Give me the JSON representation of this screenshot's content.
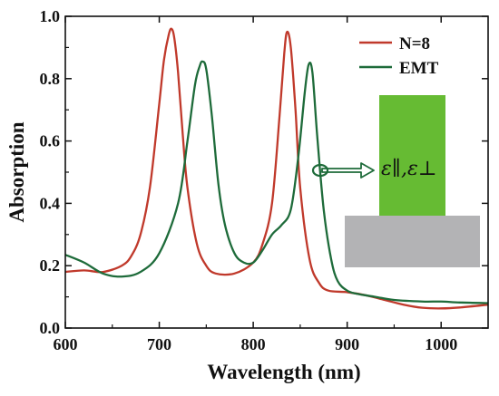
{
  "chart_data": {
    "type": "line",
    "title": "",
    "xlabel": "Wavelength (nm)",
    "ylabel": "Absorption",
    "xlim": [
      600,
      1050
    ],
    "ylim": [
      0.0,
      1.0
    ],
    "xticks": [
      600,
      700,
      800,
      900,
      1000
    ],
    "yticks": [
      0.0,
      0.2,
      0.4,
      0.6,
      0.8,
      1.0
    ],
    "xtick_labels": [
      "600",
      "700",
      "800",
      "900",
      "1000"
    ],
    "ytick_labels": [
      "0.0",
      "0.2",
      "0.4",
      "0.6",
      "0.8",
      "1.0"
    ],
    "grid": false,
    "legend_position": "top-right",
    "series": [
      {
        "name": "N=8",
        "color": "#c0392b",
        "x": [
          600,
          620,
          640,
          660,
          670,
          680,
          690,
          700,
          705,
          710,
          713,
          716,
          720,
          725,
          730,
          740,
          750,
          760,
          780,
          800,
          810,
          820,
          828,
          833,
          836,
          840,
          845,
          850,
          860,
          870,
          880,
          900,
          920,
          940,
          960,
          980,
          1000,
          1020,
          1050
        ],
        "y": [
          0.18,
          0.185,
          0.18,
          0.2,
          0.23,
          0.3,
          0.45,
          0.72,
          0.86,
          0.94,
          0.96,
          0.93,
          0.82,
          0.62,
          0.45,
          0.27,
          0.2,
          0.175,
          0.175,
          0.21,
          0.27,
          0.4,
          0.68,
          0.88,
          0.95,
          0.9,
          0.7,
          0.45,
          0.22,
          0.145,
          0.12,
          0.115,
          0.105,
          0.09,
          0.075,
          0.065,
          0.063,
          0.066,
          0.075
        ]
      },
      {
        "name": "EMT",
        "color": "#1e6b3a",
        "x": [
          600,
          620,
          640,
          660,
          680,
          700,
          720,
          730,
          738,
          743,
          746,
          750,
          756,
          763,
          770,
          780,
          790,
          800,
          810,
          820,
          830,
          840,
          848,
          855,
          859,
          863,
          868,
          875,
          883,
          890,
          900,
          910,
          930,
          950,
          980,
          1000,
          1020,
          1050
        ],
        "y": [
          0.235,
          0.21,
          0.175,
          0.165,
          0.18,
          0.24,
          0.4,
          0.6,
          0.78,
          0.84,
          0.855,
          0.83,
          0.68,
          0.46,
          0.33,
          0.24,
          0.21,
          0.21,
          0.25,
          0.3,
          0.33,
          0.38,
          0.55,
          0.76,
          0.845,
          0.82,
          0.62,
          0.38,
          0.22,
          0.15,
          0.12,
          0.11,
          0.1,
          0.09,
          0.085,
          0.085,
          0.082,
          0.08
        ]
      }
    ],
    "inset": {
      "label": "ε∥,ε⊥",
      "layer_color": "#66bb33",
      "substrate_color": "#b3b3b5",
      "arrow_color": "#1e6b3a"
    }
  }
}
